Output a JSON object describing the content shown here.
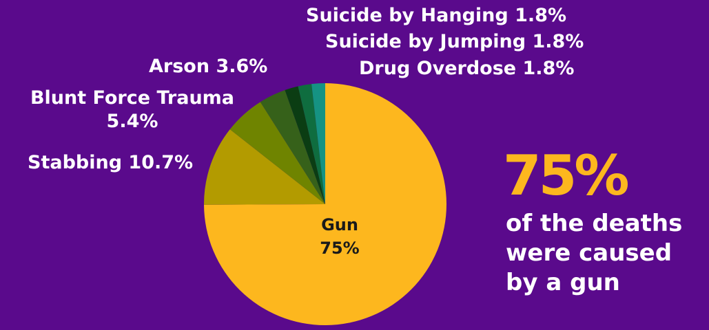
{
  "colors": {
    "background": "#5a0a8c",
    "accent": "#fdb71e",
    "text": "#ffffff"
  },
  "chart_data": {
    "type": "pie",
    "slices": [
      {
        "label": "Gun",
        "value": 75,
        "color": "#fdb71e"
      },
      {
        "label": "Stabbing",
        "value": 10.7,
        "color": "#b39b00"
      },
      {
        "label": "Blunt Force Trauma",
        "value": 5.4,
        "color": "#6f8400"
      },
      {
        "label": "Arson",
        "value": 3.6,
        "color": "#36611a"
      },
      {
        "label": "Drug Overdose",
        "value": 1.8,
        "color": "#0b3d13"
      },
      {
        "label": "Suicide by Jumping",
        "value": 1.8,
        "color": "#0f6d3f"
      },
      {
        "label": "Suicide by Hanging",
        "value": 1.8,
        "color": "#159383"
      }
    ],
    "labels": {
      "hanging": "Suicide by Hanging 1.8%",
      "jumping": "Suicide by Jumping 1.8%",
      "overdose": "Drug Overdose 1.8%",
      "arson": "Arson 3.6%",
      "blunt_line1": "Blunt Force Trauma",
      "blunt_line2": "5.4%",
      "stabbing": "Stabbing 10.7%",
      "gun_name": "Gun",
      "gun_pct": "75%"
    }
  },
  "callout": {
    "big": "75%",
    "line1": "of the deaths",
    "line2": "were caused",
    "line3": "by a gun"
  }
}
